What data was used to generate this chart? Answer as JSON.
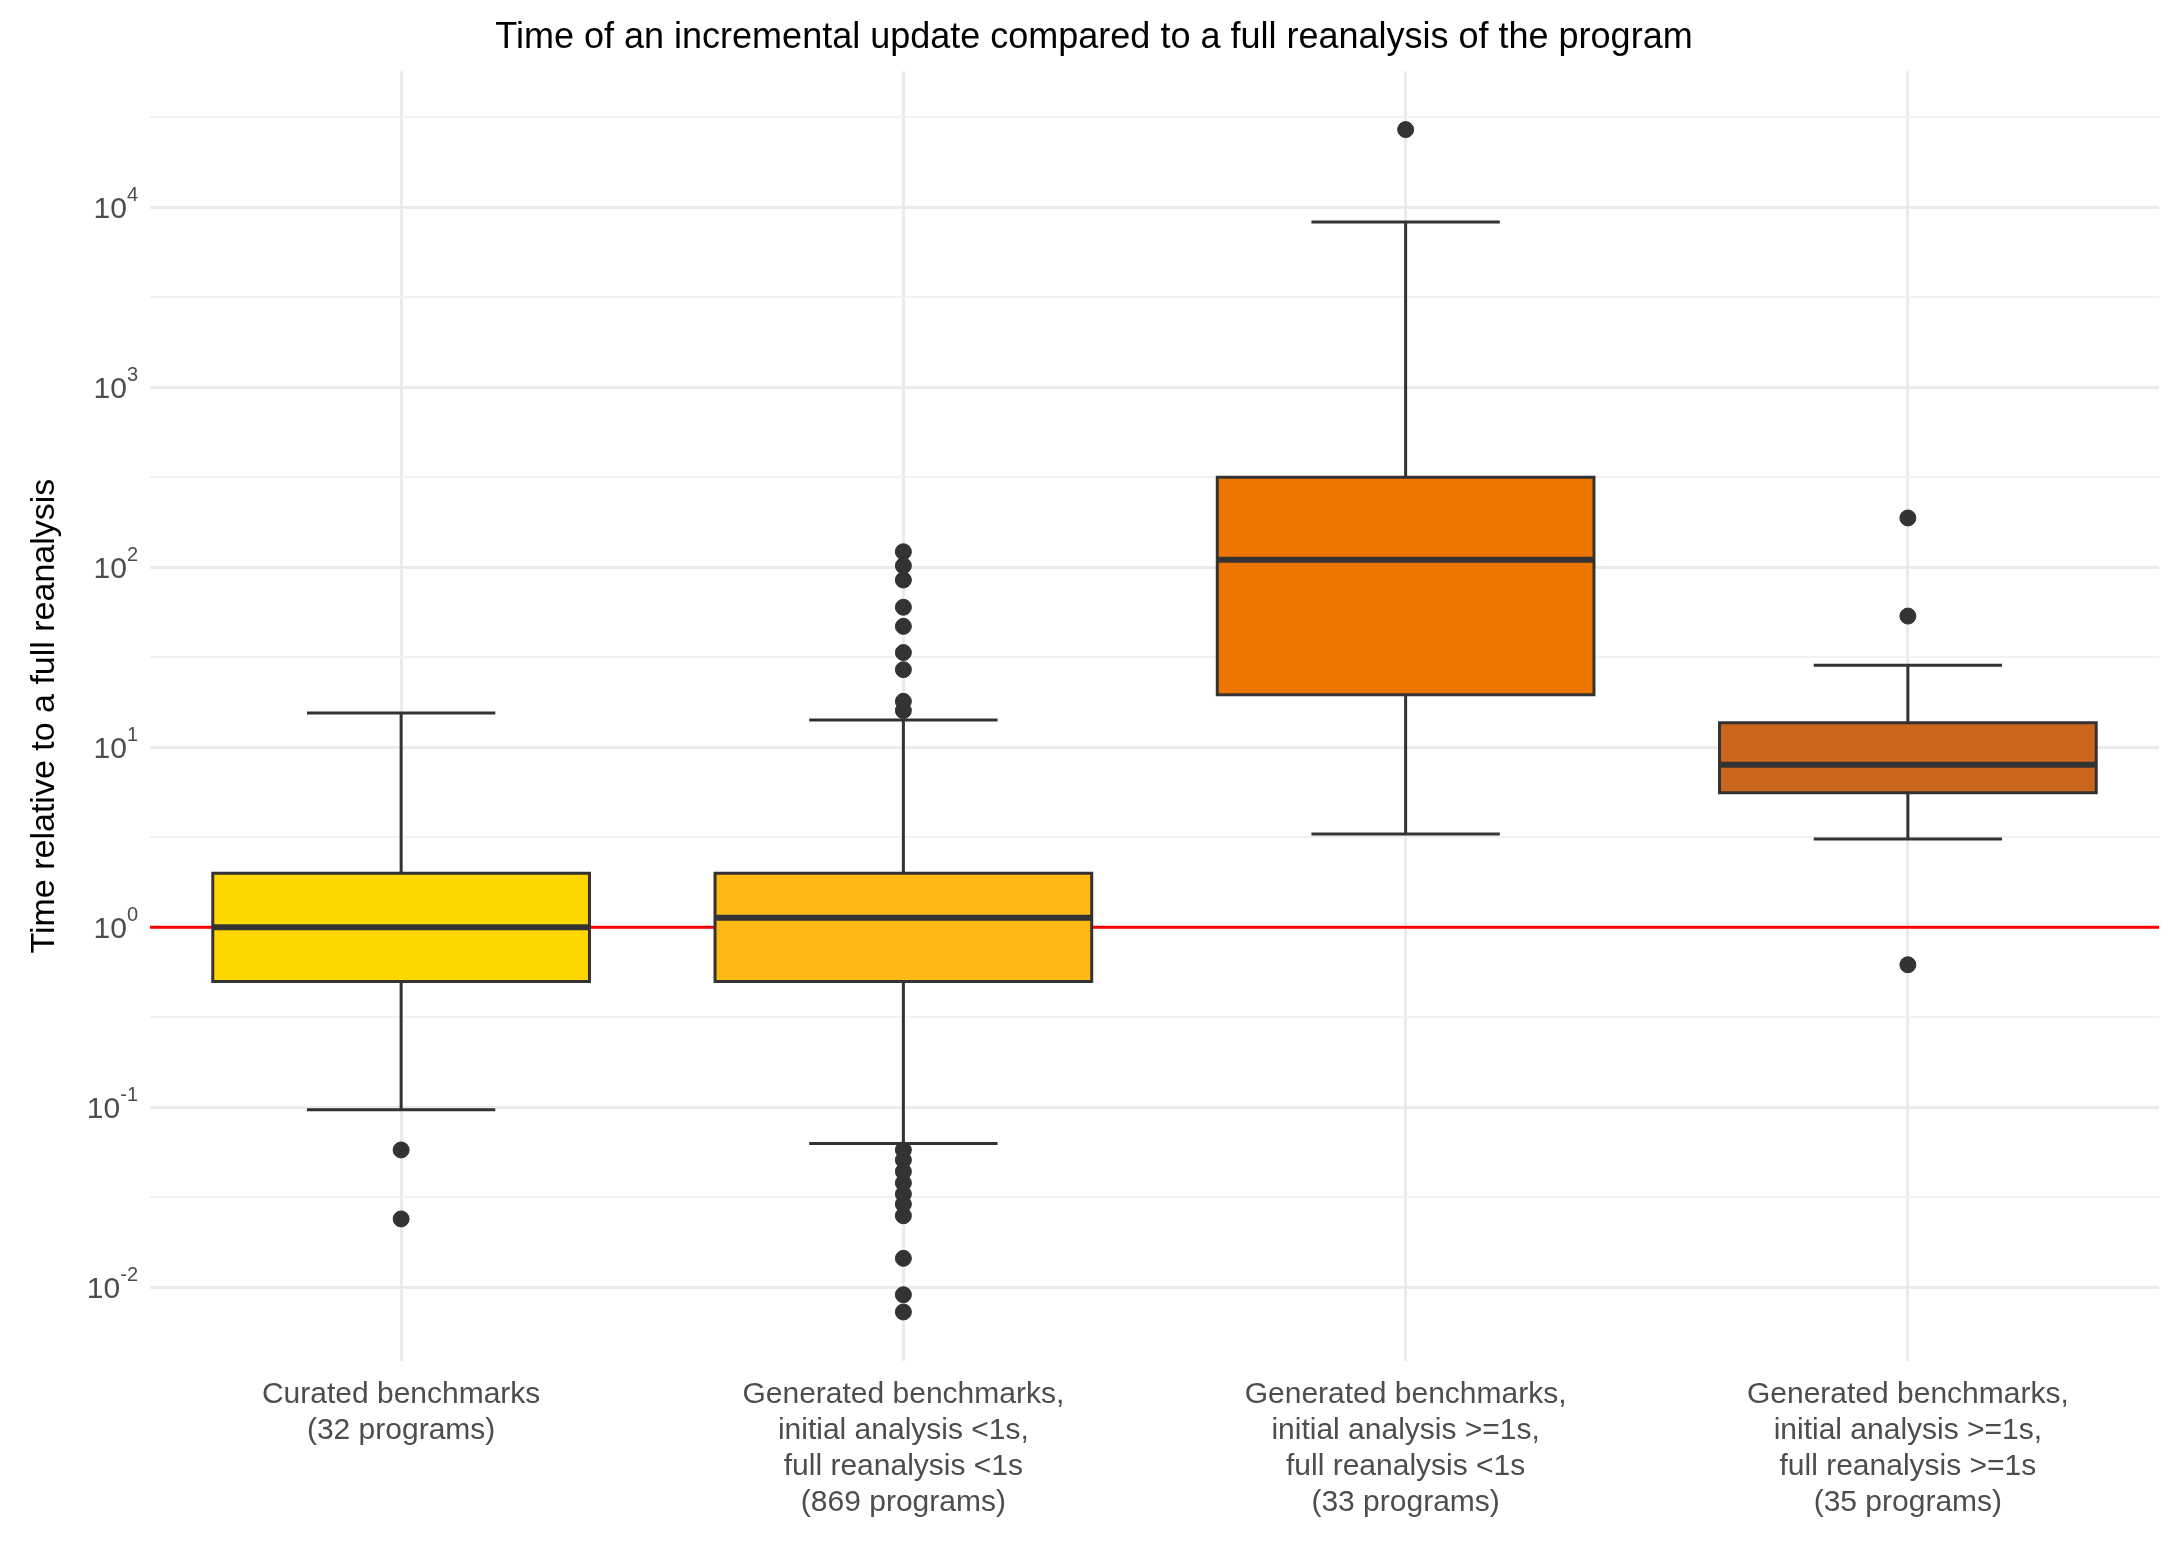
{
  "chart_data": {
    "type": "box",
    "title": "Time of an incremental update compared to a full reanalysis of the program",
    "ylabel": "Time relative to a full reanalysis",
    "categories": [
      "Curated benchmarks\n(32 programs)",
      "Generated benchmarks,\ninitial analysis <1s,\nfull reanalysis <1s\n(869 programs)",
      "Generated benchmarks,\ninitial analysis >=1s,\nfull reanalysis <1s\n(33 programs)",
      "Generated benchmarks,\ninitial analysis >=1s,\nfull reanalysis >=1s\n(35 programs)"
    ],
    "colors": [
      "#ffd700",
      "#ffb915",
      "#ee7600",
      "#cd661d"
    ],
    "boxes": [
      {
        "low": 0.097,
        "q1": 0.5,
        "median": 1.0,
        "q3": 2.0,
        "high": 15.5,
        "outliers": [
          0.058,
          0.024
        ]
      },
      {
        "low": 0.063,
        "q1": 0.5,
        "median": 1.13,
        "q3": 2.0,
        "high": 14.2,
        "outliers": [
          122,
          102,
          85,
          60,
          47,
          33.6,
          27,
          18,
          16,
          0.058,
          0.051,
          0.044,
          0.038,
          0.033,
          0.029,
          0.025,
          0.0145,
          0.0091,
          0.0073
        ]
      },
      {
        "low": 3.3,
        "q1": 19.6,
        "median": 110,
        "q3": 316,
        "high": 8270,
        "outliers": [
          27000
        ]
      },
      {
        "low": 3.1,
        "q1": 5.6,
        "median": 8.0,
        "q3": 13.7,
        "high": 28.6,
        "outliers": [
          188,
          53.6,
          0.62
        ]
      }
    ],
    "log": "y",
    "ylim": [
      0.0039,
      57000
    ],
    "yticks": [
      {
        "value": 0.01,
        "label": "10$^{-2}$"
      },
      {
        "value": 0.0316,
        "label": null
      },
      {
        "value": 0.1,
        "label": "10$^{-1}$"
      },
      {
        "value": 0.316,
        "label": null
      },
      {
        "value": 1,
        "label": "10$^{0}$"
      },
      {
        "value": 3.16,
        "label": null
      },
      {
        "value": 10,
        "label": "10$^{1}$"
      },
      {
        "value": 31.6,
        "label": null
      },
      {
        "value": 100,
        "label": "10$^{2}$"
      },
      {
        "value": 316,
        "label": null
      },
      {
        "value": 1000,
        "label": "10$^{3}$"
      },
      {
        "value": 3160,
        "label": null
      },
      {
        "value": 10000,
        "label": "10$^{4}$"
      },
      {
        "value": 31600,
        "label": null
      }
    ],
    "ref_lines": [
      {
        "axis": "y",
        "value": 1,
        "color": "#ff0000"
      }
    ],
    "grid": true,
    "legend": false
  }
}
